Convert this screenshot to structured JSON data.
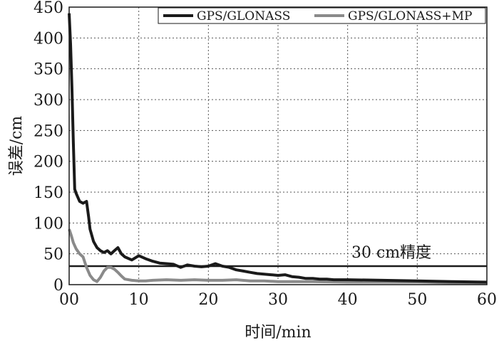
{
  "chart_data": {
    "type": "line",
    "title": "",
    "xlabel": "时间/min",
    "ylabel": "误差/cm",
    "xlim": [
      0,
      60
    ],
    "ylim": [
      0,
      450
    ],
    "xticks": [
      0,
      10,
      20,
      30,
      40,
      50,
      60
    ],
    "yticks": [
      0,
      50,
      100,
      150,
      200,
      250,
      300,
      350,
      400,
      450
    ],
    "xtick_labels": [
      "00",
      "10",
      "20",
      "30",
      "40",
      "50",
      "60"
    ],
    "ytick_labels": [
      "0",
      "50",
      "100",
      "150",
      "200",
      "250",
      "300",
      "350",
      "400",
      "450"
    ],
    "grid": "dotted",
    "legend_position": "top-right",
    "series": [
      {
        "name": "GPS/GLONASS",
        "color": "#1a1a1a",
        "x": [
          0,
          0.2,
          0.4,
          0.6,
          0.8,
          1,
          1.5,
          2,
          2.5,
          2.8,
          3,
          3.5,
          4,
          4.5,
          5,
          5.5,
          6,
          6.5,
          7,
          7.5,
          8,
          9,
          10,
          11,
          12,
          13,
          14,
          15,
          16,
          17,
          18,
          19,
          20,
          21,
          22,
          23,
          24,
          25,
          26,
          27,
          28,
          29,
          30,
          31,
          32,
          33,
          34,
          35,
          36,
          37,
          38,
          40,
          45,
          50,
          55,
          60
        ],
        "y": [
          440,
          390,
          320,
          230,
          155,
          148,
          135,
          132,
          135,
          110,
          90,
          70,
          60,
          55,
          52,
          55,
          50,
          55,
          60,
          50,
          45,
          40,
          47,
          42,
          38,
          35,
          34,
          33,
          28,
          32,
          30,
          29,
          30,
          34,
          30,
          28,
          24,
          22,
          20,
          18,
          17,
          16,
          15,
          16,
          13,
          12,
          10,
          10,
          9,
          9,
          8,
          8,
          7,
          6,
          5,
          4
        ]
      },
      {
        "name": "GPS/GLONASS+MP",
        "color": "#8a8a8a",
        "x": [
          0,
          0.3,
          0.6,
          1,
          1.5,
          2,
          2.5,
          3,
          3.5,
          4,
          4.5,
          5,
          5.5,
          6,
          6.5,
          7,
          7.5,
          8,
          9,
          10,
          11,
          12,
          14,
          16,
          18,
          20,
          22,
          24,
          26,
          28,
          30,
          35,
          40,
          45,
          50,
          55,
          60
        ],
        "y": [
          90,
          80,
          68,
          58,
          50,
          45,
          28,
          15,
          8,
          5,
          12,
          22,
          28,
          28,
          25,
          20,
          14,
          9,
          7,
          6,
          6,
          7,
          8,
          7,
          8,
          7,
          7,
          8,
          6,
          6,
          5,
          5,
          4,
          4,
          4,
          3,
          3
        ]
      }
    ],
    "annotations": [
      {
        "type": "hline",
        "y": 30,
        "label": "30 cm精度",
        "color": "#1a1a1a"
      }
    ]
  }
}
